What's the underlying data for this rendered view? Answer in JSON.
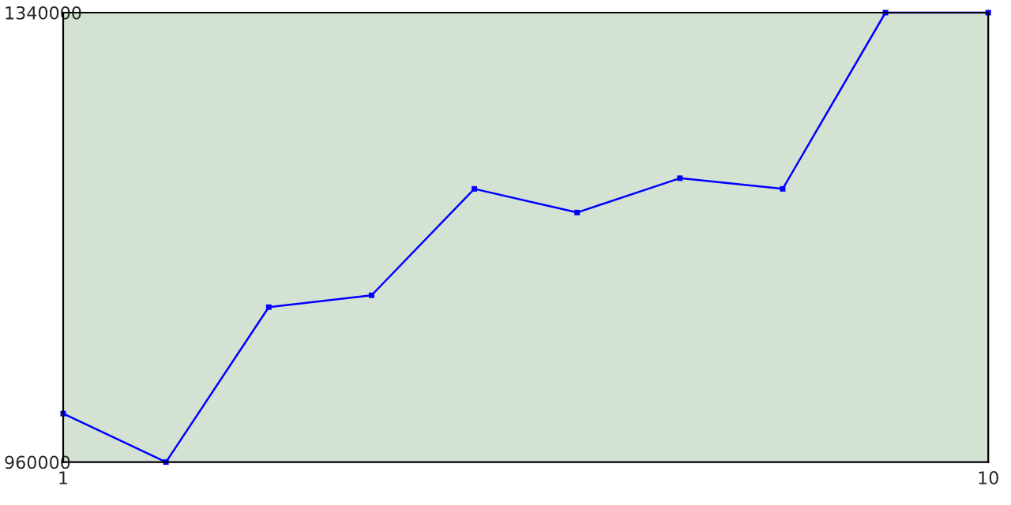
{
  "chart_data": {
    "type": "line",
    "x": [
      1,
      2,
      3,
      4,
      5,
      6,
      7,
      8,
      9,
      10
    ],
    "series": [
      {
        "color": "#0000ff",
        "values": [
          1001000,
          960000,
          1091000,
          1101000,
          1191000,
          1171000,
          1200000,
          1191000,
          1340000,
          1340000
        ]
      }
    ],
    "xlim": [
      1,
      10
    ],
    "xticks": [
      1,
      10
    ],
    "ylim": [
      960000,
      1340000
    ],
    "yticks": [
      960000,
      1340000
    ],
    "marker": "square"
  }
}
